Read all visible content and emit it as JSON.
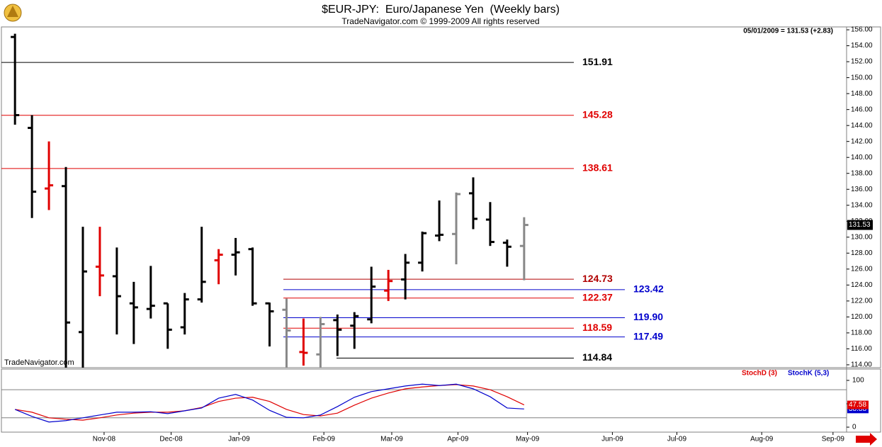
{
  "chart_data": [
    {
      "type": "ohlc",
      "title": "$EUR-JPY:  Euro/Japanese Yen  (Weekly bars)",
      "subtitle": "TradeNavigator.com © 1999-2009 All rights reserved",
      "header_note": "05/01/2009 = 131.53 (+2.83)",
      "watermark": "TradeNavigator.com",
      "open": [
        155.1,
        143.7,
        136.1,
        136.4,
        118.1,
        126.3,
        125.1,
        121.7,
        121.0,
        121.7,
        118.7,
        122.2,
        127.1,
        127.8,
        128.5,
        121.7,
        120.9,
        115.6,
        115.3,
        119.6,
        118.9,
        119.7,
        123.3,
        124.7,
        126.8,
        130.2,
        130.4,
        135.5,
        132.2,
        129.3,
        128.9
      ],
      "high": [
        155.5,
        145.3,
        142.0,
        138.8,
        131.3,
        131.3,
        128.7,
        124.4,
        126.4,
        121.7,
        123.0,
        131.3,
        128.5,
        129.9,
        128.7,
        121.8,
        122.3,
        119.8,
        120.0,
        120.3,
        120.6,
        126.3,
        125.9,
        127.9,
        130.7,
        134.6,
        135.6,
        137.5,
        134.4,
        129.7,
        132.5
      ],
      "low": [
        144.1,
        132.4,
        133.4,
        113.0,
        112.0,
        122.6,
        117.8,
        116.6,
        119.8,
        116.0,
        117.8,
        121.8,
        124.1,
        125.2,
        121.4,
        116.3,
        112.5,
        113.9,
        112.5,
        115.1,
        116.0,
        119.2,
        122.0,
        122.2,
        125.7,
        129.5,
        126.6,
        131.0,
        128.9,
        126.3,
        124.6
      ],
      "close": [
        145.3,
        135.7,
        136.5,
        119.3,
        125.7,
        125.2,
        122.6,
        121.2,
        121.4,
        118.4,
        122.2,
        124.4,
        127.8,
        128.1,
        121.7,
        120.7,
        118.3,
        115.5,
        119.1,
        118.4,
        120.1,
        123.8,
        124.5,
        126.8,
        130.5,
        130.3,
        135.4,
        132.3,
        129.4,
        128.8,
        131.53
      ],
      "colors": [
        "#000000",
        "#000000",
        "#e00000",
        "#000000",
        "#000000",
        "#e00000",
        "#000000",
        "#000000",
        "#000000",
        "#000000",
        "#000000",
        "#000000",
        "#e00000",
        "#000000",
        "#000000",
        "#000000",
        "#888888",
        "#e00000",
        "#888888",
        "#000000",
        "#000000",
        "#000000",
        "#e00000",
        "#000000",
        "#000000",
        "#000000",
        "#888888",
        "#000000",
        "#000000",
        "#000000",
        "#888888"
      ],
      "levels": [
        {
          "value": 151.91,
          "label": "151.91",
          "color": "#000000"
        },
        {
          "value": 145.28,
          "label": "145.28",
          "color": "#e00000"
        },
        {
          "value": 138.61,
          "label": "138.61",
          "color": "#e00000"
        },
        {
          "value": 124.73,
          "label": "124.73",
          "color": "#b00000"
        },
        {
          "value": 123.42,
          "label": "123.42",
          "color": "#0000cc"
        },
        {
          "value": 122.37,
          "label": "122.37",
          "color": "#e00000"
        },
        {
          "value": 119.9,
          "label": "119.90",
          "color": "#0000cc"
        },
        {
          "value": 118.59,
          "label": "118.59",
          "color": "#e00000"
        },
        {
          "value": 117.49,
          "label": "117.49",
          "color": "#0000cc"
        },
        {
          "value": 114.84,
          "label": "114.84",
          "color": "#000000"
        }
      ],
      "xlim": [
        -0.8,
        49
      ],
      "ylim": [
        113.64,
        156.36
      ],
      "yticks": [
        {
          "value": 114,
          "label": "114.00"
        },
        {
          "value": 116,
          "label": "116.00"
        },
        {
          "value": 118,
          "label": "118.00"
        },
        {
          "value": 120,
          "label": "120.00"
        },
        {
          "value": 122,
          "label": "122.00"
        },
        {
          "value": 124,
          "label": "124.00"
        },
        {
          "value": 126,
          "label": "126.00"
        },
        {
          "value": 128,
          "label": "128.00"
        },
        {
          "value": 130,
          "label": "130.00"
        },
        {
          "value": 132,
          "label": "132.00"
        },
        {
          "value": 134,
          "label": "134.00"
        },
        {
          "value": 136,
          "label": "136.00"
        },
        {
          "value": 138,
          "label": "138.00"
        },
        {
          "value": 140,
          "label": "140.00"
        },
        {
          "value": 142,
          "label": "142.00"
        },
        {
          "value": 144,
          "label": "144.00"
        },
        {
          "value": 146,
          "label": "146.00"
        },
        {
          "value": 148,
          "label": "148.00"
        },
        {
          "value": 150,
          "label": "150.00"
        },
        {
          "value": 152,
          "label": "152.00"
        },
        {
          "value": 154,
          "label": "154.00"
        },
        {
          "value": 156,
          "label": "156.00"
        }
      ]
    },
    {
      "type": "line",
      "series": [
        {
          "name": "StochD (3)",
          "color": "#e00000",
          "values": [
            38,
            32,
            20,
            17,
            15,
            20,
            26,
            30,
            32,
            32,
            35,
            42,
            55,
            62,
            64,
            55,
            38,
            27,
            24,
            30,
            47,
            62,
            73,
            82,
            86,
            89,
            91,
            88,
            80,
            65,
            47.58
          ]
        },
        {
          "name": "StochK (5,3)",
          "color": "#0000cc",
          "values": [
            38,
            23,
            11,
            14,
            20,
            26,
            32,
            32,
            33,
            29,
            35,
            41,
            62,
            70,
            58,
            36,
            21,
            20,
            26,
            44,
            64,
            76,
            82,
            88,
            92,
            89,
            92,
            82,
            65,
            41,
            38.88
          ]
        }
      ],
      "levels": [
        20,
        80
      ],
      "xlim": [
        -0.8,
        49
      ],
      "ylim": [
        -10.6,
        124.2
      ],
      "yticks": [
        0,
        50,
        100
      ],
      "xticks": [
        {
          "value": 5.25,
          "label": "Nov-08"
        },
        {
          "value": 9.2,
          "label": "Dec-08"
        },
        {
          "value": 13.2,
          "label": "Jan-09"
        },
        {
          "value": 18.2,
          "label": "Feb-09"
        },
        {
          "value": 22.2,
          "label": "Mar-09"
        },
        {
          "value": 26.1,
          "label": "Apr-09"
        },
        {
          "value": 30.2,
          "label": "May-09"
        },
        {
          "value": 35.2,
          "label": "Jun-09"
        },
        {
          "value": 39,
          "label": "Jul-09"
        },
        {
          "value": 44,
          "label": "Aug-09"
        },
        {
          "value": 48.2,
          "label": "Sep-09"
        }
      ]
    }
  ]
}
